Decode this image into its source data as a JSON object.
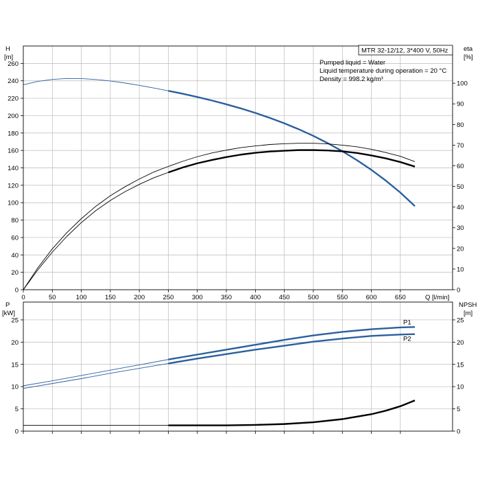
{
  "colors": {
    "blue": "#2a5f9e",
    "black": "#000000",
    "grid": "#b9b9b9"
  },
  "chart_data": [
    {
      "type": "line",
      "panel": "head-efficiency",
      "title": "MTR 32-12/12, 3*400 V, 50Hz",
      "annotations": [
        "Pumped liquid = Water",
        "Liquid temperature during operation = 20 °C",
        "Density = 998.2 kg/m³"
      ],
      "ylabel_left": "H",
      "ylabel_left_unit": "[m]",
      "ylabel_right": "eta",
      "ylabel_right_unit": "[%]",
      "xlabel": "Q [l/min]",
      "xlim": [
        0,
        740
      ],
      "ylim_left": [
        0,
        280
      ],
      "ylim_right": [
        0,
        118
      ],
      "x_ticks": [
        0,
        50,
        100,
        150,
        200,
        250,
        300,
        350,
        400,
        450,
        500,
        550,
        600,
        650
      ],
      "y_left_ticks": [
        0,
        20,
        40,
        60,
        80,
        100,
        120,
        140,
        160,
        180,
        200,
        220,
        240,
        260
      ],
      "y_right_ticks": [
        0,
        10,
        20,
        30,
        40,
        50,
        60,
        70,
        80,
        90,
        100
      ],
      "grid": true,
      "series": [
        {
          "axis": "left",
          "color": "blue",
          "thin_until": 250,
          "x": [
            0,
            25,
            50,
            75,
            100,
            125,
            150,
            175,
            200,
            225,
            250,
            275,
            300,
            325,
            350,
            375,
            400,
            425,
            450,
            475,
            500,
            525,
            550,
            575,
            600,
            625,
            650,
            675
          ],
          "y": [
            235.5,
            239.3,
            241.6,
            242.7,
            242.6,
            241.5,
            239.8,
            237.5,
            234.8,
            231.7,
            228.5,
            225.1,
            221.4,
            217.4,
            213.0,
            208.3,
            203.1,
            197.4,
            191.2,
            184.3,
            176.7,
            168.3,
            159.1,
            148.9,
            137.7,
            125.3,
            111.6,
            96.0
          ]
        },
        {
          "axis": "right",
          "color": "black",
          "thin_until": 250,
          "x": [
            0,
            25,
            50,
            75,
            100,
            125,
            150,
            175,
            200,
            225,
            250,
            275,
            300,
            325,
            350,
            375,
            400,
            425,
            450,
            475,
            500,
            525,
            550,
            575,
            600,
            625,
            650,
            675
          ],
          "y": [
            0,
            9.6,
            18.2,
            25.8,
            32.5,
            38.3,
            43.2,
            47.4,
            51.0,
            54.2,
            56.8,
            59.2,
            61.2,
            62.8,
            64.2,
            65.4,
            66.3,
            66.9,
            67.3,
            67.6,
            67.6,
            67.4,
            67.0,
            66.2,
            65.0,
            63.6,
            61.8,
            59.6
          ]
        },
        {
          "axis": "right",
          "color": "black",
          "thin_until": 740,
          "x": [
            0,
            25,
            50,
            75,
            100,
            125,
            150,
            175,
            200,
            225,
            250,
            275,
            300,
            325,
            350,
            375,
            400,
            425,
            450,
            475,
            500,
            525,
            550,
            575,
            600,
            625,
            650,
            675
          ],
          "y": [
            0,
            10.6,
            19.8,
            27.6,
            34.4,
            40.4,
            45.5,
            49.8,
            53.6,
            57.0,
            59.7,
            62.2,
            64.4,
            66.2,
            67.6,
            68.8,
            69.6,
            70.3,
            70.7,
            70.9,
            70.9,
            70.6,
            70.0,
            69.2,
            68.0,
            66.4,
            64.6,
            62.0
          ]
        }
      ]
    },
    {
      "type": "line",
      "panel": "power-npsh",
      "ylabel_left": "P",
      "ylabel_left_unit": "[kW]",
      "ylabel_right": "NPSH",
      "ylabel_right_unit": "[m]",
      "xlim": [
        0,
        740
      ],
      "ylim_left": [
        0,
        29
      ],
      "ylim_right": [
        0,
        29
      ],
      "y_left_ticks": [
        0,
        5,
        10,
        15,
        20,
        25
      ],
      "y_right_ticks": [
        0,
        5,
        10,
        15,
        20,
        25
      ],
      "grid": true,
      "series": [
        {
          "name": "P1",
          "axis": "left",
          "color": "blue",
          "thin_until": 250,
          "x": [
            0,
            50,
            100,
            150,
            200,
            250,
            300,
            350,
            400,
            450,
            500,
            550,
            600,
            650,
            675
          ],
          "y": [
            10.2,
            11.3,
            12.5,
            13.7,
            14.9,
            16.1,
            17.2,
            18.3,
            19.4,
            20.5,
            21.5,
            22.3,
            22.9,
            23.3,
            23.4
          ]
        },
        {
          "name": "P2",
          "axis": "left",
          "color": "blue",
          "thin_until": 250,
          "x": [
            0,
            50,
            100,
            150,
            200,
            250,
            300,
            350,
            400,
            450,
            500,
            550,
            600,
            650,
            675
          ],
          "y": [
            9.6,
            10.7,
            11.8,
            13.0,
            14.1,
            15.2,
            16.3,
            17.3,
            18.3,
            19.2,
            20.1,
            20.8,
            21.4,
            21.7,
            21.8
          ]
        },
        {
          "axis": "right",
          "color": "black",
          "thin_until": 250,
          "x": [
            0,
            50,
            100,
            150,
            200,
            250,
            300,
            350,
            400,
            450,
            500,
            550,
            600,
            625,
            650,
            675
          ],
          "y": [
            1.3,
            1.3,
            1.3,
            1.3,
            1.3,
            1.3,
            1.3,
            1.3,
            1.4,
            1.6,
            2.0,
            2.7,
            3.8,
            4.6,
            5.6,
            6.9
          ]
        }
      ]
    }
  ]
}
